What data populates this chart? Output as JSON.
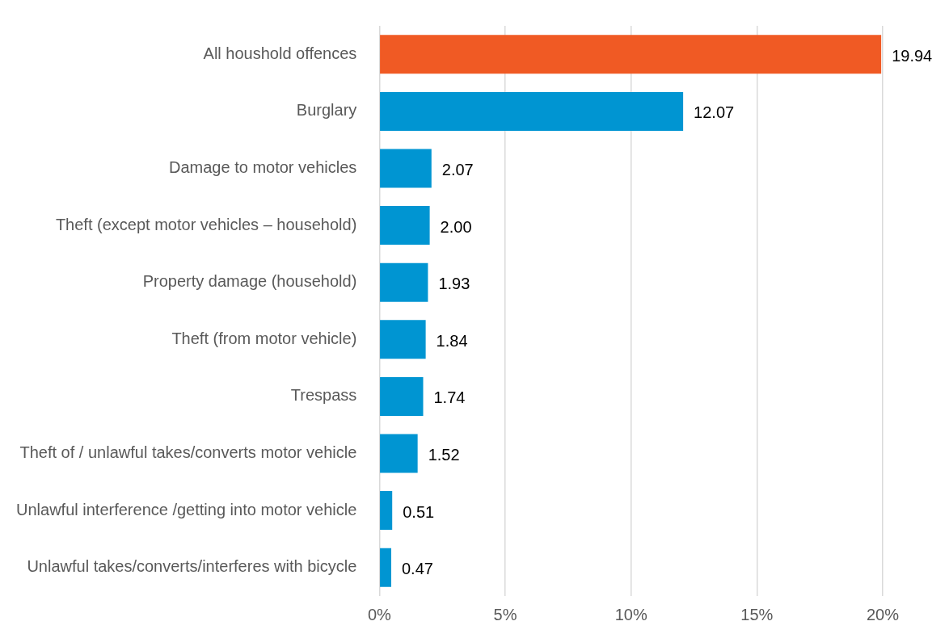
{
  "chart_data": {
    "type": "bar",
    "orientation": "horizontal",
    "categories": [
      "All houshold offences",
      "Burglary",
      "Damage to motor vehicles",
      "Theft (except motor vehicles – household)",
      "Property damage (household)",
      "Theft (from motor vehicle)",
      "Trespass",
      "Theft of / unlawful takes/converts motor vehicle",
      "Unlawful interference /getting into motor vehicle",
      "Unlawful takes/converts/interferes with bicycle"
    ],
    "values": [
      19.94,
      12.07,
      2.07,
      2.0,
      1.93,
      1.84,
      1.74,
      1.52,
      0.51,
      0.47
    ],
    "value_labels": [
      "19.94",
      "12.07",
      "2.07",
      "2.00",
      "1.93",
      "1.84",
      "1.74",
      "1.52",
      "0.51",
      "0.47"
    ],
    "colors": [
      "#f05a24",
      "#0095d2",
      "#0095d2",
      "#0095d2",
      "#0095d2",
      "#0095d2",
      "#0095d2",
      "#0095d2",
      "#0095d2",
      "#0095d2"
    ],
    "xlim": [
      0,
      20
    ],
    "xticks": [
      {
        "value": 0,
        "label": "0%"
      },
      {
        "value": 5,
        "label": "5%"
      },
      {
        "value": 10,
        "label": "10%"
      },
      {
        "value": 15,
        "label": "15%"
      },
      {
        "value": 20,
        "label": "20%"
      }
    ],
    "grid": "x",
    "legend": false
  }
}
